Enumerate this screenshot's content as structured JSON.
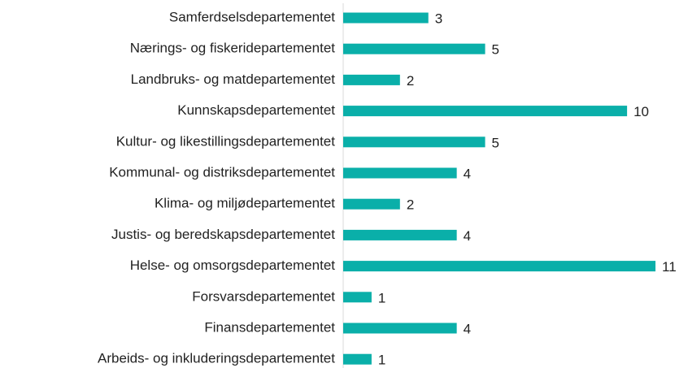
{
  "chart_data": {
    "type": "hbar",
    "categories": [
      "Samferdselsdepartementet",
      "Nærings- og fiskeridepartementet",
      "Landbruks- og matdepartementet",
      "Kunnskapsdepartementet",
      "Kultur- og likestillingsdepartementet",
      "Kommunal- og distriksdepartementet",
      "Klima- og miljødepartementet",
      "Justis- og beredskapsdepartementet",
      "Helse- og omsorgsdepartementet",
      "Forsvarsdepartementet",
      "Finansdepartementet",
      "Arbeids- og inkluderingsdepartementet"
    ],
    "values": [
      3,
      5,
      2,
      10,
      5,
      4,
      2,
      4,
      11,
      1,
      4,
      1
    ],
    "color": "#0aafa9",
    "xlim": [
      0,
      11
    ]
  }
}
